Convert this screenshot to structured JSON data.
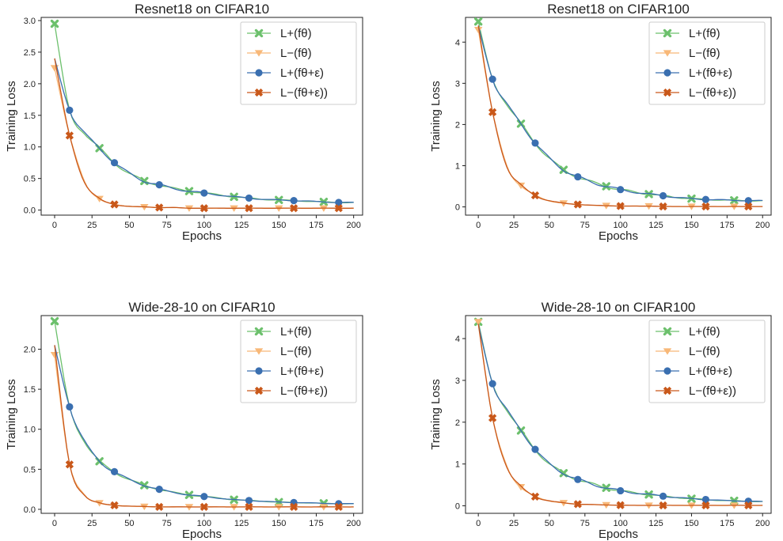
{
  "chart_data": [
    {
      "type": "line",
      "title": "Resnet18 on CIFAR10",
      "xlabel": "Epochs",
      "ylabel": "Training Loss",
      "xlim": [
        -9,
        206
      ],
      "ylim": [
        -0.08,
        3.05
      ],
      "xticks": [
        0,
        25,
        50,
        75,
        100,
        125,
        150,
        175,
        200
      ],
      "yticks": [
        0.0,
        0.5,
        1.0,
        1.5,
        2.0,
        2.5,
        3.0
      ],
      "ytick_labels": [
        "0.0",
        "0.5",
        "1.0",
        "1.5",
        "2.0",
        "2.5",
        "3.0"
      ],
      "legend_position": "top-right",
      "grid": false,
      "series": [
        {
          "name": "L+(fθ)",
          "color": "#6cc06c",
          "marker": "x",
          "x": [
            0,
            10,
            20,
            30,
            40,
            50,
            60,
            70,
            80,
            90,
            100,
            110,
            120,
            130,
            140,
            150,
            160,
            170,
            180,
            190,
            200
          ],
          "values": [
            2.95,
            1.58,
            1.22,
            0.98,
            0.75,
            0.58,
            0.46,
            0.4,
            0.34,
            0.3,
            0.27,
            0.24,
            0.21,
            0.19,
            0.17,
            0.16,
            0.15,
            0.14,
            0.13,
            0.12,
            0.12
          ],
          "marker_every": 3
        },
        {
          "name": "L−(fθ)",
          "color": "#f8b878",
          "marker": "v",
          "x": [
            0,
            10,
            20,
            30,
            40,
            50,
            60,
            70,
            80,
            90,
            100,
            110,
            120,
            130,
            140,
            150,
            160,
            170,
            180,
            190,
            200
          ],
          "values": [
            2.25,
            1.18,
            0.45,
            0.18,
            0.09,
            0.06,
            0.05,
            0.04,
            0.04,
            0.03,
            0.03,
            0.03,
            0.03,
            0.03,
            0.03,
            0.03,
            0.03,
            0.03,
            0.03,
            0.03,
            0.03
          ],
          "marker_every": 3
        },
        {
          "name": "L+(fθ+ε)",
          "color": "#3a6fb0",
          "marker": "o",
          "x": [
            0,
            10,
            20,
            30,
            40,
            50,
            60,
            70,
            80,
            90,
            100,
            110,
            120,
            130,
            140,
            150,
            160,
            170,
            180,
            190,
            200
          ],
          "values": [
            2.4,
            1.58,
            1.22,
            0.98,
            0.75,
            0.58,
            0.46,
            0.4,
            0.34,
            0.3,
            0.27,
            0.24,
            0.21,
            0.19,
            0.17,
            0.16,
            0.15,
            0.14,
            0.13,
            0.12,
            0.12
          ],
          "marker_offset": 1,
          "marker_every": 3
        },
        {
          "name": "L−(fθ+ε))",
          "color": "#c9581a",
          "marker": "X",
          "x": [
            0,
            10,
            20,
            30,
            40,
            50,
            60,
            70,
            80,
            90,
            100,
            110,
            120,
            130,
            140,
            150,
            160,
            170,
            180,
            190,
            200
          ],
          "values": [
            2.4,
            1.18,
            0.45,
            0.18,
            0.09,
            0.06,
            0.05,
            0.04,
            0.04,
            0.03,
            0.03,
            0.03,
            0.03,
            0.03,
            0.03,
            0.03,
            0.03,
            0.03,
            0.03,
            0.03,
            0.03
          ],
          "marker_offset": 1,
          "marker_every": 3
        }
      ]
    },
    {
      "type": "line",
      "title": "Resnet18 on CIFAR100",
      "xlabel": "Epochs",
      "ylabel": "Training Loss",
      "xlim": [
        -9,
        206
      ],
      "ylim": [
        -0.2,
        4.6
      ],
      "xticks": [
        0,
        25,
        50,
        75,
        100,
        125,
        150,
        175,
        200
      ],
      "yticks": [
        0,
        1,
        2,
        3,
        4
      ],
      "ytick_labels": [
        "0",
        "1",
        "2",
        "3",
        "4"
      ],
      "legend_position": "top-right",
      "grid": false,
      "series": [
        {
          "name": "L+(fθ)",
          "color": "#6cc06c",
          "marker": "x",
          "x": [
            0,
            10,
            20,
            30,
            40,
            50,
            60,
            70,
            80,
            90,
            100,
            110,
            120,
            130,
            140,
            150,
            160,
            170,
            180,
            190,
            200
          ],
          "values": [
            4.5,
            3.1,
            2.5,
            2.02,
            1.55,
            1.18,
            0.9,
            0.73,
            0.6,
            0.5,
            0.42,
            0.36,
            0.31,
            0.27,
            0.23,
            0.2,
            0.18,
            0.17,
            0.16,
            0.15,
            0.15
          ],
          "marker_every": 3
        },
        {
          "name": "L−(fθ)",
          "color": "#f8b878",
          "marker": "v",
          "x": [
            0,
            10,
            20,
            30,
            40,
            50,
            60,
            70,
            80,
            90,
            100,
            110,
            120,
            130,
            140,
            150,
            160,
            170,
            180,
            190,
            200
          ],
          "values": [
            4.3,
            2.3,
            1.0,
            0.52,
            0.28,
            0.15,
            0.09,
            0.06,
            0.04,
            0.03,
            0.02,
            0.02,
            0.02,
            0.01,
            0.01,
            0.01,
            0.01,
            0.01,
            0.01,
            0.01,
            0.01
          ],
          "marker_every": 3
        },
        {
          "name": "L+(fθ+ε)",
          "color": "#3a6fb0",
          "marker": "o",
          "x": [
            0,
            10,
            20,
            30,
            40,
            50,
            60,
            70,
            80,
            90,
            100,
            110,
            120,
            130,
            140,
            150,
            160,
            170,
            180,
            190,
            200
          ],
          "values": [
            4.4,
            3.1,
            2.5,
            2.02,
            1.55,
            1.18,
            0.9,
            0.73,
            0.6,
            0.5,
            0.42,
            0.36,
            0.31,
            0.27,
            0.23,
            0.2,
            0.18,
            0.17,
            0.16,
            0.15,
            0.15
          ],
          "marker_offset": 1,
          "marker_every": 3
        },
        {
          "name": "L−(fθ+ε))",
          "color": "#c9581a",
          "marker": "X",
          "x": [
            0,
            10,
            20,
            30,
            40,
            50,
            60,
            70,
            80,
            90,
            100,
            110,
            120,
            130,
            140,
            150,
            160,
            170,
            180,
            190,
            200
          ],
          "values": [
            4.4,
            2.3,
            1.0,
            0.52,
            0.28,
            0.15,
            0.09,
            0.06,
            0.04,
            0.03,
            0.02,
            0.02,
            0.02,
            0.01,
            0.01,
            0.01,
            0.01,
            0.01,
            0.01,
            0.01,
            0.01
          ],
          "marker_offset": 1,
          "marker_every": 3
        }
      ]
    },
    {
      "type": "line",
      "title": "Wide-28-10 on CIFAR10",
      "xlabel": "Epochs",
      "ylabel": "Training Loss",
      "xlim": [
        -9,
        206
      ],
      "ylim": [
        -0.05,
        2.42
      ],
      "xticks": [
        0,
        25,
        50,
        75,
        100,
        125,
        150,
        175,
        200
      ],
      "yticks": [
        0.0,
        0.5,
        1.0,
        1.5,
        2.0
      ],
      "ytick_labels": [
        "0.0",
        "0.5",
        "1.0",
        "1.5",
        "2.0"
      ],
      "legend_position": "top-right",
      "grid": false,
      "series": [
        {
          "name": "L+(fθ)",
          "color": "#6cc06c",
          "marker": "x",
          "x": [
            0,
            10,
            20,
            30,
            40,
            50,
            60,
            70,
            80,
            90,
            100,
            110,
            120,
            130,
            140,
            150,
            160,
            170,
            180,
            190,
            200
          ],
          "values": [
            2.35,
            1.28,
            0.85,
            0.6,
            0.47,
            0.37,
            0.3,
            0.25,
            0.21,
            0.18,
            0.16,
            0.14,
            0.12,
            0.11,
            0.1,
            0.09,
            0.085,
            0.08,
            0.075,
            0.07,
            0.07
          ],
          "marker_every": 3
        },
        {
          "name": "L−(fθ)",
          "color": "#f8b878",
          "marker": "v",
          "x": [
            0,
            10,
            20,
            30,
            40,
            50,
            60,
            70,
            80,
            90,
            100,
            110,
            120,
            130,
            140,
            150,
            160,
            170,
            180,
            190,
            200
          ],
          "values": [
            1.93,
            0.56,
            0.18,
            0.08,
            0.05,
            0.04,
            0.035,
            0.03,
            0.03,
            0.03,
            0.03,
            0.03,
            0.03,
            0.03,
            0.03,
            0.03,
            0.03,
            0.03,
            0.03,
            0.03,
            0.03
          ],
          "marker_every": 3
        },
        {
          "name": "L+(fθ+ε)",
          "color": "#3a6fb0",
          "marker": "o",
          "x": [
            0,
            10,
            20,
            30,
            40,
            50,
            60,
            70,
            80,
            90,
            100,
            110,
            120,
            130,
            140,
            150,
            160,
            170,
            180,
            190,
            200
          ],
          "values": [
            2.05,
            1.28,
            0.85,
            0.6,
            0.47,
            0.37,
            0.3,
            0.25,
            0.21,
            0.18,
            0.16,
            0.14,
            0.12,
            0.11,
            0.1,
            0.09,
            0.085,
            0.08,
            0.075,
            0.07,
            0.07
          ],
          "marker_offset": 1,
          "marker_every": 3
        },
        {
          "name": "L−(fθ+ε))",
          "color": "#c9581a",
          "marker": "X",
          "x": [
            0,
            10,
            20,
            30,
            40,
            50,
            60,
            70,
            80,
            90,
            100,
            110,
            120,
            130,
            140,
            150,
            160,
            170,
            180,
            190,
            200
          ],
          "values": [
            2.05,
            0.56,
            0.18,
            0.08,
            0.05,
            0.04,
            0.035,
            0.03,
            0.03,
            0.03,
            0.03,
            0.03,
            0.03,
            0.03,
            0.03,
            0.03,
            0.03,
            0.03,
            0.03,
            0.03,
            0.03
          ],
          "marker_offset": 1,
          "marker_every": 3
        }
      ]
    },
    {
      "type": "line",
      "title": "Wide-28-10 on CIFAR100",
      "xlabel": "Epochs",
      "ylabel": "Training Loss",
      "xlim": [
        -9,
        206
      ],
      "ylim": [
        -0.18,
        4.55
      ],
      "xticks": [
        0,
        25,
        50,
        75,
        100,
        125,
        150,
        175,
        200
      ],
      "yticks": [
        0,
        1,
        2,
        3,
        4
      ],
      "ytick_labels": [
        "0",
        "1",
        "2",
        "3",
        "4"
      ],
      "legend_position": "top-right",
      "grid": false,
      "series": [
        {
          "name": "L+(fθ)",
          "color": "#6cc06c",
          "marker": "x",
          "x": [
            0,
            10,
            20,
            30,
            40,
            50,
            60,
            70,
            80,
            90,
            100,
            110,
            120,
            130,
            140,
            150,
            160,
            170,
            180,
            190,
            200
          ],
          "values": [
            4.4,
            2.92,
            2.3,
            1.8,
            1.35,
            1.0,
            0.78,
            0.63,
            0.52,
            0.43,
            0.36,
            0.31,
            0.27,
            0.23,
            0.2,
            0.17,
            0.15,
            0.13,
            0.12,
            0.11,
            0.1
          ],
          "marker_every": 3
        },
        {
          "name": "L−(fθ)",
          "color": "#f8b878",
          "marker": "v",
          "x": [
            0,
            10,
            20,
            30,
            40,
            50,
            60,
            70,
            80,
            90,
            100,
            110,
            120,
            130,
            140,
            150,
            160,
            170,
            180,
            190,
            200
          ],
          "values": [
            4.4,
            2.1,
            0.95,
            0.45,
            0.22,
            0.12,
            0.07,
            0.04,
            0.03,
            0.02,
            0.015,
            0.01,
            0.01,
            0.01,
            0.01,
            0.01,
            0.01,
            0.01,
            0.01,
            0.01,
            0.01
          ],
          "marker_every": 3
        },
        {
          "name": "L+(fθ+ε)",
          "color": "#3a6fb0",
          "marker": "o",
          "x": [
            0,
            10,
            20,
            30,
            40,
            50,
            60,
            70,
            80,
            90,
            100,
            110,
            120,
            130,
            140,
            150,
            160,
            170,
            180,
            190,
            200
          ],
          "values": [
            4.35,
            2.92,
            2.3,
            1.8,
            1.35,
            1.0,
            0.78,
            0.63,
            0.52,
            0.43,
            0.36,
            0.31,
            0.27,
            0.23,
            0.2,
            0.17,
            0.15,
            0.13,
            0.12,
            0.11,
            0.1
          ],
          "marker_offset": 1,
          "marker_every": 3
        },
        {
          "name": "L−(fθ+ε))",
          "color": "#c9581a",
          "marker": "X",
          "x": [
            0,
            10,
            20,
            30,
            40,
            50,
            60,
            70,
            80,
            90,
            100,
            110,
            120,
            130,
            140,
            150,
            160,
            170,
            180,
            190,
            200
          ],
          "values": [
            4.35,
            2.1,
            0.95,
            0.45,
            0.22,
            0.12,
            0.07,
            0.04,
            0.03,
            0.02,
            0.015,
            0.01,
            0.01,
            0.01,
            0.01,
            0.01,
            0.01,
            0.01,
            0.01,
            0.01,
            0.01
          ],
          "marker_offset": 1,
          "marker_every": 3
        }
      ]
    }
  ]
}
